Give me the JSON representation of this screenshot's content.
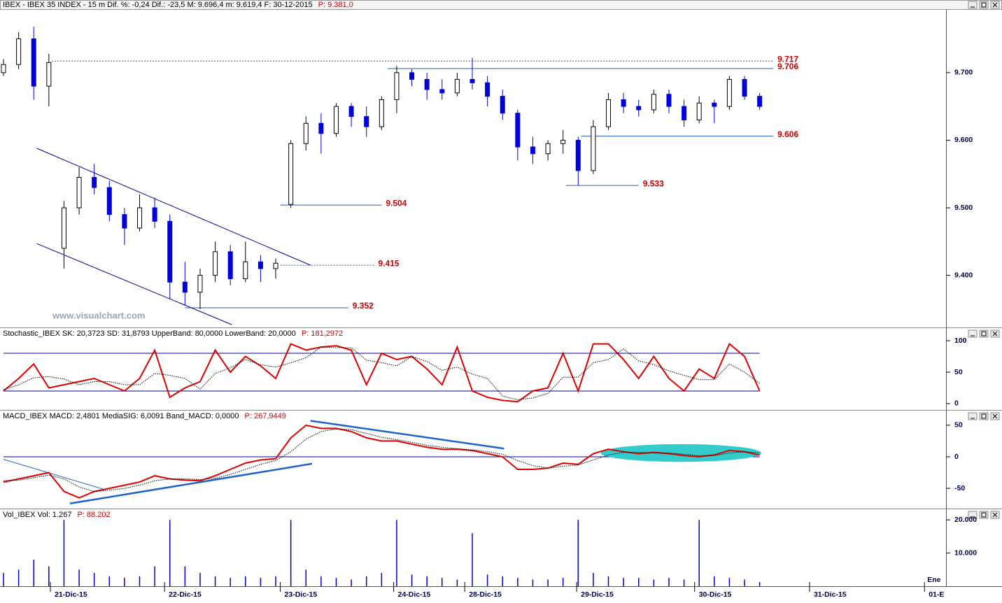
{
  "chart_data": [
    {
      "type": "candlestick",
      "title": "IBEX - IBEX 35 INDEX - 15 m  Dif. %: -0,24  Dif.: -23,5  M: 9.696,4  m: 9.619,4  F: 30-12-2015",
      "price_label": "P: 9.381,0",
      "watermark": "www.visualchart.com",
      "x": [
        0,
        1,
        2,
        3,
        4,
        5,
        6,
        7,
        8,
        9,
        10,
        11,
        12,
        13,
        14,
        15,
        16,
        17,
        18,
        19,
        20,
        21,
        22,
        23,
        24,
        25,
        26,
        27,
        28,
        29,
        30,
        31,
        32,
        33,
        34,
        35,
        36,
        37,
        38,
        39,
        40,
        41,
        42,
        43,
        44,
        45,
        46,
        47,
        48,
        49,
        50
      ],
      "open": [
        9700,
        9712,
        9750,
        9680,
        9440,
        9500,
        9545,
        9530,
        9490,
        9470,
        9500,
        9480,
        9390,
        9375,
        9400,
        9435,
        9395,
        9420,
        9410,
        9505,
        9595,
        9625,
        9610,
        9650,
        9635,
        9620,
        9660,
        9700,
        9690,
        9675,
        9670,
        9690,
        9685,
        9665,
        9640,
        9590,
        9580,
        9595,
        9600,
        9555,
        9620,
        9660,
        9650,
        9645,
        9668,
        9650,
        9630,
        9655,
        9650,
        9690,
        9665
      ],
      "high": [
        9720,
        9760,
        9768,
        9728,
        9510,
        9560,
        9565,
        9540,
        9500,
        9520,
        9515,
        9490,
        9420,
        9410,
        9450,
        9445,
        9450,
        9430,
        9425,
        9600,
        9635,
        9640,
        9655,
        9655,
        9650,
        9665,
        9710,
        9705,
        9700,
        9690,
        9700,
        9722,
        9695,
        9675,
        9645,
        9605,
        9600,
        9615,
        9605,
        9630,
        9670,
        9670,
        9660,
        9675,
        9675,
        9660,
        9665,
        9660,
        9695,
        9695,
        9670
      ],
      "low": [
        9695,
        9705,
        9660,
        9650,
        9410,
        9490,
        9520,
        9480,
        9445,
        9465,
        9470,
        9365,
        9355,
        9350,
        9390,
        9385,
        9390,
        9390,
        9395,
        9500,
        9585,
        9580,
        9605,
        9620,
        9605,
        9615,
        9640,
        9680,
        9660,
        9660,
        9665,
        9675,
        9650,
        9630,
        9570,
        9565,
        9570,
        9580,
        9533,
        9550,
        9615,
        9640,
        9635,
        9640,
        9640,
        9620,
        9625,
        9625,
        9645,
        9660,
        9645
      ],
      "close": [
        9712,
        9750,
        9680,
        9715,
        9500,
        9545,
        9530,
        9490,
        9470,
        9500,
        9480,
        9390,
        9375,
        9400,
        9435,
        9395,
        9420,
        9410,
        9418,
        9595,
        9625,
        9610,
        9650,
        9635,
        9620,
        9660,
        9700,
        9690,
        9675,
        9670,
        9690,
        9685,
        9665,
        9640,
        9590,
        9580,
        9595,
        9600,
        9555,
        9620,
        9660,
        9650,
        9645,
        9668,
        9650,
        9630,
        9655,
        9650,
        9690,
        9665,
        9650
      ],
      "up_color": "#ffffff",
      "down_color": "#0000dd",
      "xlim": [
        0,
        62
      ],
      "ylim": [
        9323,
        9793
      ],
      "yticks": [
        {
          "value": 9400,
          "label": "9.400"
        },
        {
          "value": 9500,
          "label": "9.500"
        },
        {
          "value": 9600,
          "label": "9.600"
        },
        {
          "value": 9700,
          "label": "9.700"
        }
      ],
      "level_color": "#1f5fb0",
      "levels": [
        {
          "value": 9717,
          "label": "9.717",
          "x": [
            3.2,
            50.9
          ],
          "style": "dotted"
        },
        {
          "value": 9706,
          "label": "9.706",
          "x": [
            25.4,
            50.9
          ],
          "style": "solid"
        },
        {
          "value": 9606,
          "label": "9.606",
          "x": [
            38.2,
            50.9
          ],
          "style": "solid"
        },
        {
          "value": 9533,
          "label": "9.533",
          "x": [
            37.2,
            42.0
          ],
          "style": "solid"
        },
        {
          "value": 9504,
          "label": "9.504",
          "x": [
            18.3,
            25.0
          ],
          "style": "solid"
        },
        {
          "value": 9415,
          "label": "9.415",
          "x": [
            18.3,
            24.5
          ],
          "style": "dotted"
        },
        {
          "value": 9352,
          "label": "9.352",
          "x": [
            12.0,
            22.8
          ],
          "style": "solid"
        }
      ],
      "trend_color": "#000099",
      "trend_lines": [
        {
          "points": [
            [
              2.2,
              9588
            ],
            [
              20.3,
              9415
            ]
          ]
        },
        {
          "points": [
            [
              2.2,
              9447
            ],
            [
              15.1,
              9327
            ]
          ]
        }
      ]
    },
    {
      "type": "line",
      "title": "Stochastic_IBEX SK: 20,3723  SD: 31,8793  UpperBand: 80,0000  LowerBand: 20,0000",
      "price_label": "P: 181,2972",
      "x": [
        0,
        1,
        2,
        3,
        4,
        5,
        6,
        7,
        8,
        9,
        10,
        11,
        12,
        13,
        14,
        15,
        16,
        17,
        18,
        19,
        20,
        21,
        22,
        23,
        24,
        25,
        26,
        27,
        28,
        29,
        30,
        31,
        32,
        33,
        34,
        35,
        36,
        37,
        38,
        39,
        40,
        41,
        42,
        43,
        44,
        45,
        46,
        47,
        48,
        49,
        50
      ],
      "series": [
        {
          "color": "#dd0000",
          "style": "solid",
          "values": [
            20,
            40,
            63,
            25,
            30,
            35,
            40,
            30,
            20,
            40,
            85,
            10,
            25,
            35,
            85,
            50,
            75,
            60,
            40,
            95,
            85,
            90,
            92,
            85,
            30,
            80,
            70,
            75,
            55,
            30,
            90,
            20,
            10,
            5,
            3,
            20,
            25,
            80,
            20,
            95,
            95,
            70,
            40,
            75,
            40,
            20,
            55,
            40,
            95,
            75,
            20
          ]
        },
        {
          "color": "#000000",
          "style": "dotted",
          "values": [
            22,
            30,
            41,
            43,
            39,
            30,
            35,
            35,
            30,
            30,
            48,
            45,
            40,
            23,
            48,
            57,
            70,
            62,
            58,
            65,
            73,
            90,
            89,
            89,
            69,
            65,
            60,
            75,
            67,
            53,
            58,
            47,
            40,
            12,
            6,
            9,
            16,
            42,
            42,
            65,
            70,
            87,
            68,
            62,
            52,
            45,
            38,
            38,
            63,
            50,
            32
          ]
        }
      ],
      "bands": [
        80,
        20
      ],
      "band_color": "#000099",
      "xlim": [
        0,
        62
      ],
      "ylim": [
        -9,
        119
      ],
      "yticks": [
        0,
        50,
        100
      ]
    },
    {
      "type": "line",
      "title": "MACD_IBEX MACD: 2,4801  MediaSIG: 6,0091  Band_MACD: 0,0000",
      "price_label": "P: 267,9449",
      "x": [
        0,
        1,
        2,
        3,
        4,
        5,
        6,
        7,
        8,
        9,
        10,
        11,
        12,
        13,
        14,
        15,
        16,
        17,
        18,
        19,
        20,
        21,
        22,
        23,
        24,
        25,
        26,
        27,
        28,
        29,
        30,
        31,
        32,
        33,
        34,
        35,
        36,
        37,
        38,
        39,
        40,
        41,
        42,
        43,
        44,
        45,
        46,
        47,
        48,
        49,
        50
      ],
      "series": [
        {
          "color": "#dd0000",
          "style": "solid",
          "values": [
            -40,
            -35,
            -30,
            -25,
            -55,
            -65,
            -55,
            -50,
            -45,
            -40,
            -30,
            -35,
            -37,
            -38,
            -30,
            -20,
            -10,
            -5,
            -3,
            30,
            50,
            45,
            45,
            40,
            30,
            25,
            25,
            20,
            15,
            12,
            12,
            10,
            5,
            0,
            -20,
            -20,
            -18,
            -10,
            -12,
            5,
            12,
            8,
            5,
            7,
            5,
            2,
            0,
            3,
            10,
            8,
            2.5
          ]
        },
        {
          "color": "#000000",
          "style": "dotted",
          "values": [
            -38,
            -37,
            -33,
            -29,
            -35,
            -48,
            -55,
            -53,
            -50,
            -45,
            -38,
            -35,
            -35,
            -36,
            -34,
            -28,
            -20,
            -12,
            -6,
            8,
            28,
            40,
            44,
            43,
            37,
            31,
            27,
            23,
            18,
            15,
            13,
            11,
            8,
            4,
            -6,
            -14,
            -18,
            -15,
            -13,
            -5,
            3,
            7,
            7,
            6,
            6,
            4,
            2,
            2,
            6,
            8,
            6
          ]
        }
      ],
      "bands": [
        0
      ],
      "band_color": "#000099",
      "trend_color": "#1e64c8",
      "trend_lines": [
        {
          "points": [
            [
              0,
              -4
            ],
            [
              6.7,
              -52
            ]
          ]
        },
        {
          "points": [
            [
              4.4,
              -74
            ],
            [
              20.4,
              -11
            ]
          ]
        },
        {
          "points": [
            [
              20.3,
              57
            ],
            [
              33.1,
              13
            ]
          ]
        }
      ],
      "highlight": {
        "center": [
          44.8,
          6
        ],
        "radii": [
          5.3,
          14
        ],
        "color": "#33cccc"
      },
      "xlim": [
        0,
        62
      ],
      "ylim": [
        -82,
        72
      ],
      "yticks": [
        -50,
        0,
        50
      ]
    },
    {
      "type": "bar",
      "title": "Vol_IBEX Vol: 1.267",
      "price_label": "P: 88.202",
      "x": [
        0,
        1,
        2,
        3,
        4,
        5,
        6,
        7,
        8,
        9,
        10,
        11,
        12,
        13,
        14,
        15,
        16,
        17,
        18,
        19,
        20,
        21,
        22,
        23,
        24,
        25,
        26,
        27,
        28,
        29,
        30,
        31,
        32,
        33,
        34,
        35,
        36,
        37,
        38,
        39,
        40,
        41,
        42,
        43,
        44,
        45,
        46,
        47,
        48,
        49,
        50
      ],
      "values": [
        4000,
        5000,
        8000,
        6000,
        20000,
        5000,
        4000,
        3000,
        2500,
        3000,
        6000,
        20000,
        6000,
        4000,
        3000,
        2500,
        3000,
        2500,
        3000,
        20000,
        5000,
        3000,
        2500,
        2000,
        3000,
        4000,
        20000,
        3500,
        3000,
        2500,
        2000,
        16000,
        3500,
        3000,
        2500,
        2000,
        2000,
        2500,
        20000,
        4000,
        3000,
        2500,
        2500,
        2000,
        2500,
        2000,
        20000,
        3000,
        2500,
        2000,
        1267
      ],
      "color": "#0000cc",
      "xlim": [
        0,
        62
      ],
      "ylim": [
        0,
        23000
      ],
      "yticks": [
        {
          "value": 10000,
          "label": "10.000"
        },
        {
          "value": 20000,
          "label": "20.000"
        }
      ],
      "xticks": [
        {
          "value": 3.1,
          "label": "21-Dic-15"
        },
        {
          "value": 10.65,
          "label": "22-Dic-15"
        },
        {
          "value": 18.3,
          "label": "23-Dic-15"
        },
        {
          "value": 25.8,
          "label": "24-Dic-15"
        },
        {
          "value": 30.5,
          "label": "28-Dic-15"
        },
        {
          "value": 37.9,
          "label": "29-Dic-15"
        },
        {
          "value": 45.7,
          "label": "30-Dic-15"
        },
        {
          "value": 53.3,
          "label": "31-Dic-15"
        },
        {
          "value": 60.9,
          "label": "01-E"
        }
      ],
      "month_labels": [
        {
          "value": 60.9,
          "label": "Ene"
        }
      ]
    }
  ]
}
